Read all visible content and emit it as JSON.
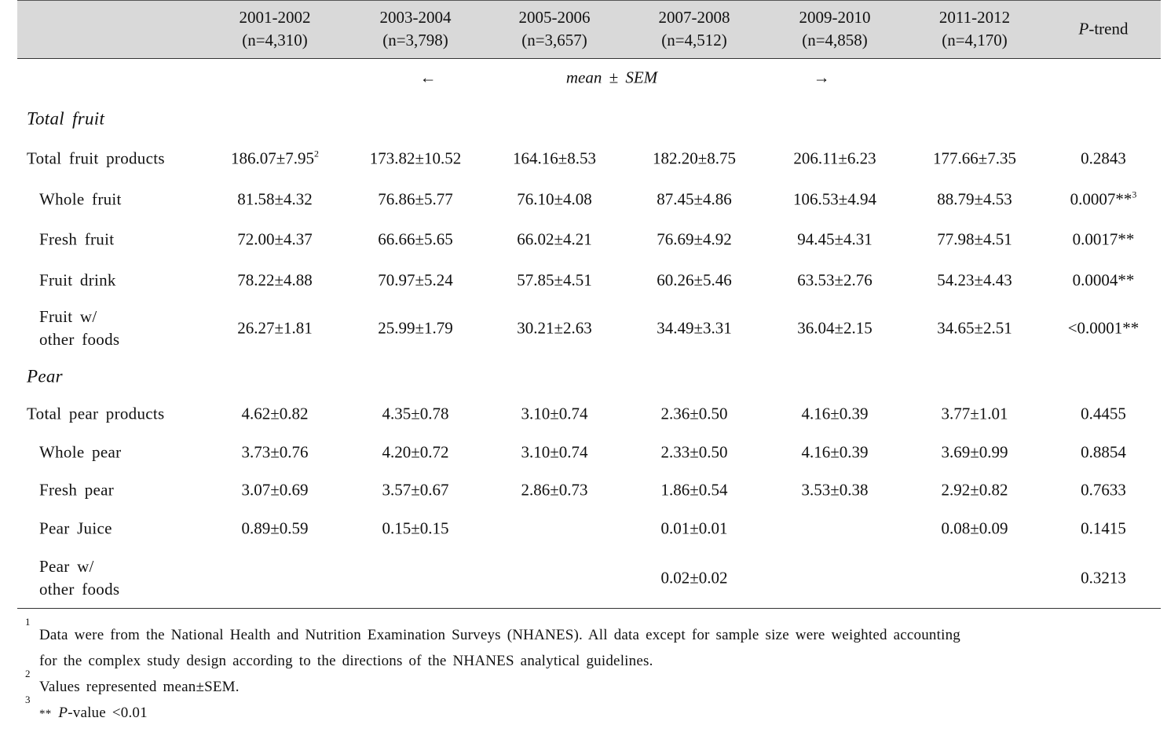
{
  "table": {
    "columns": [
      {
        "period": "2001-2002",
        "n": "(n=4,310)"
      },
      {
        "period": "2003-2004",
        "n": "(n=3,798)"
      },
      {
        "period": "2005-2006",
        "n": "(n=3,657)"
      },
      {
        "period": "2007-2008",
        "n": "(n=4,512)"
      },
      {
        "period": "2009-2010",
        "n": "(n=4,858)"
      },
      {
        "period": "2011-2012",
        "n": "(n=4,170)"
      }
    ],
    "p_header": {
      "italic": "P",
      "text": "-trend"
    },
    "scale_row": {
      "left": "←",
      "label": "mean ± SEM",
      "right": "→"
    },
    "sections": [
      {
        "title": "Total fruit",
        "rows": [
          {
            "label": [
              "Total fruit products"
            ],
            "cells": [
              {
                "text": "186.07±7.95",
                "sup": "2"
              },
              {
                "text": "173.82±10.52"
              },
              {
                "text": "164.16±8.53"
              },
              {
                "text": "182.20±8.75"
              },
              {
                "text": "206.11±6.23"
              },
              {
                "text": "177.66±7.35"
              }
            ],
            "p": {
              "text": "0.2843"
            }
          },
          {
            "label": [
              "Whole fruit"
            ],
            "cells": [
              {
                "text": "81.58±4.32"
              },
              {
                "text": "76.86±5.77"
              },
              {
                "text": "76.10±4.08"
              },
              {
                "text": "87.45±4.86"
              },
              {
                "text": "106.53±4.94"
              },
              {
                "text": "88.79±4.53"
              }
            ],
            "p": {
              "text": "0.0007**",
              "sup": "3"
            }
          },
          {
            "label": [
              "Fresh fruit"
            ],
            "cells": [
              {
                "text": "72.00±4.37"
              },
              {
                "text": "66.66±5.65"
              },
              {
                "text": "66.02±4.21"
              },
              {
                "text": "76.69±4.92"
              },
              {
                "text": "94.45±4.31"
              },
              {
                "text": "77.98±4.51"
              }
            ],
            "p": {
              "text": "0.0017**"
            }
          },
          {
            "label": [
              "Fruit drink"
            ],
            "cells": [
              {
                "text": "78.22±4.88"
              },
              {
                "text": "70.97±5.24"
              },
              {
                "text": "57.85±4.51"
              },
              {
                "text": "60.26±5.46"
              },
              {
                "text": "63.53±2.76"
              },
              {
                "text": "54.23±4.43"
              }
            ],
            "p": {
              "text": "0.0004**"
            }
          },
          {
            "label": [
              "Fruit w/",
              "other foods"
            ],
            "cells": [
              {
                "text": "26.27±1.81"
              },
              {
                "text": "25.99±1.79"
              },
              {
                "text": "30.21±2.63"
              },
              {
                "text": "34.49±3.31"
              },
              {
                "text": "36.04±2.15"
              },
              {
                "text": "34.65±2.51"
              }
            ],
            "p": {
              "text": "<0.0001**"
            }
          }
        ]
      },
      {
        "title": "Pear",
        "rows": [
          {
            "label": [
              "Total pear products"
            ],
            "cells": [
              {
                "text": "4.62±0.82"
              },
              {
                "text": "4.35±0.78"
              },
              {
                "text": "3.10±0.74"
              },
              {
                "text": "2.36±0.50"
              },
              {
                "text": "4.16±0.39"
              },
              {
                "text": "3.77±1.01"
              }
            ],
            "p": {
              "text": "0.4455"
            }
          },
          {
            "label": [
              "Whole pear"
            ],
            "cells": [
              {
                "text": "3.73±0.76"
              },
              {
                "text": "4.20±0.72"
              },
              {
                "text": "3.10±0.74"
              },
              {
                "text": "2.33±0.50"
              },
              {
                "text": "4.16±0.39"
              },
              {
                "text": "3.69±0.99"
              }
            ],
            "p": {
              "text": "0.8854"
            }
          },
          {
            "label": [
              "Fresh pear"
            ],
            "cells": [
              {
                "text": "3.07±0.69"
              },
              {
                "text": "3.57±0.67"
              },
              {
                "text": "2.86±0.73"
              },
              {
                "text": "1.86±0.54"
              },
              {
                "text": "3.53±0.38"
              },
              {
                "text": "2.92±0.82"
              }
            ],
            "p": {
              "text": "0.7633"
            }
          },
          {
            "label": [
              "Pear Juice"
            ],
            "cells": [
              {
                "text": "0.89±0.59"
              },
              {
                "text": "0.15±0.15"
              },
              null,
              {
                "text": "0.01±0.01"
              },
              null,
              {
                "text": "0.08±0.09"
              }
            ],
            "p": {
              "text": "0.1415"
            }
          },
          {
            "label": [
              "Pear w/",
              "other foods"
            ],
            "cells": [
              null,
              null,
              null,
              {
                "text": "0.02±0.02"
              },
              null,
              null
            ],
            "p": {
              "text": "0.3213"
            }
          }
        ]
      }
    ],
    "footnotes": [
      {
        "mark": "1",
        "lines": [
          "Data were from the National Health and Nutrition Examination Surveys (NHANES). All data except for sample size were weighted accounting",
          "for the complex study design according to the directions of the NHANES analytical guidelines."
        ]
      },
      {
        "mark": "2",
        "lines": [
          "Values represented mean±SEM."
        ]
      },
      {
        "mark": "3",
        "pre": "**",
        "italic": "P",
        "text": "-value <0.01"
      }
    ]
  }
}
